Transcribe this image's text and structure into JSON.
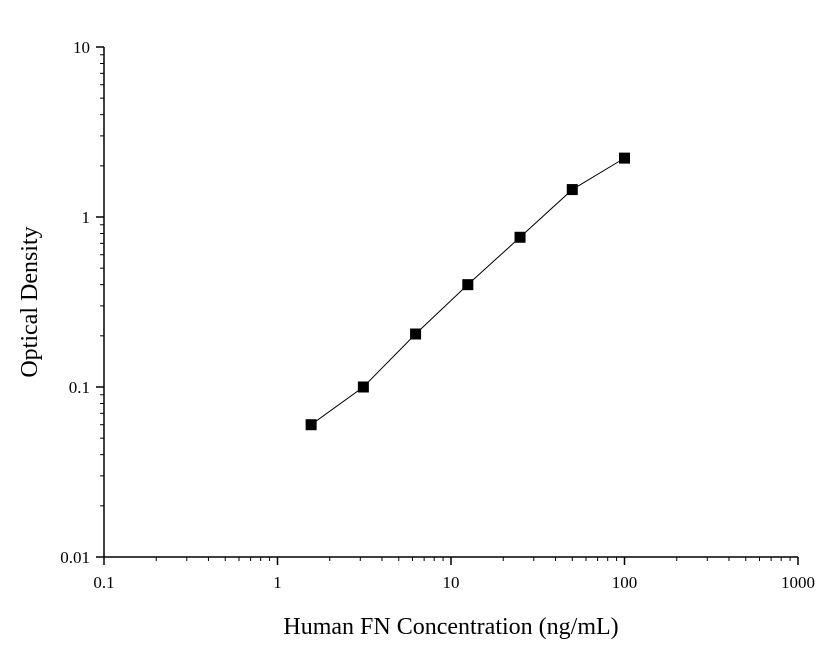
{
  "chart_data": {
    "type": "scatter",
    "title": "",
    "xlabel": "Human FN Concentration (ng/mL)",
    "ylabel": "Optical Density",
    "x_scale": "log",
    "y_scale": "log",
    "xlim": [
      0.1,
      1000
    ],
    "ylim": [
      0.01,
      10
    ],
    "x_ticks": [
      "0.1",
      "1",
      "10",
      "100",
      "1000"
    ],
    "y_ticks": [
      "0.01",
      "0.1",
      "1",
      "10"
    ],
    "grid": false,
    "legend": "none",
    "series": [
      {
        "x": [
          1.5625,
          3.125,
          6.25,
          12.5,
          25,
          50,
          100
        ],
        "y": [
          0.06,
          0.1,
          0.205,
          0.4,
          0.76,
          1.45,
          2.22
        ],
        "marker": "square",
        "line": true,
        "color": "#000000"
      }
    ]
  }
}
